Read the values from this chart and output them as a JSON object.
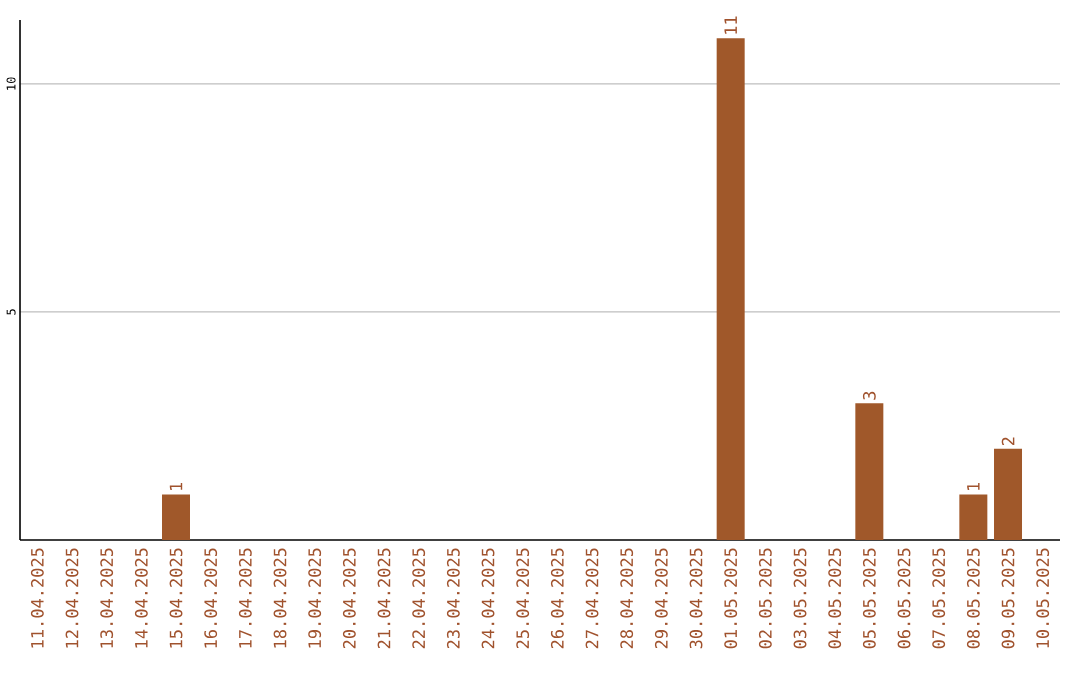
{
  "chart_data": {
    "type": "bar",
    "categories": [
      "11.04.2025",
      "12.04.2025",
      "13.04.2025",
      "14.04.2025",
      "15.04.2025",
      "16.04.2025",
      "17.04.2025",
      "18.04.2025",
      "19.04.2025",
      "20.04.2025",
      "21.04.2025",
      "22.04.2025",
      "23.04.2025",
      "24.04.2025",
      "25.04.2025",
      "26.04.2025",
      "27.04.2025",
      "28.04.2025",
      "29.04.2025",
      "30.04.2025",
      "01.05.2025",
      "02.05.2025",
      "03.05.2025",
      "04.05.2025",
      "05.05.2025",
      "06.05.2025",
      "07.05.2025",
      "08.05.2025",
      "09.05.2025",
      "10.05.2025"
    ],
    "values": [
      0,
      0,
      0,
      0,
      1,
      0,
      0,
      0,
      0,
      0,
      0,
      0,
      0,
      0,
      0,
      0,
      0,
      0,
      0,
      0,
      11,
      0,
      0,
      0,
      3,
      0,
      0,
      1,
      2,
      0
    ],
    "value_labels": [
      null,
      null,
      null,
      null,
      "1",
      null,
      null,
      null,
      null,
      null,
      null,
      null,
      null,
      null,
      null,
      null,
      null,
      null,
      null,
      null,
      "11",
      null,
      null,
      null,
      "3",
      null,
      null,
      "1",
      "2",
      null
    ],
    "color": "#a0582a",
    "ylim": [
      0,
      11.4
    ],
    "yticks": [
      5,
      10
    ],
    "grid": "y"
  }
}
